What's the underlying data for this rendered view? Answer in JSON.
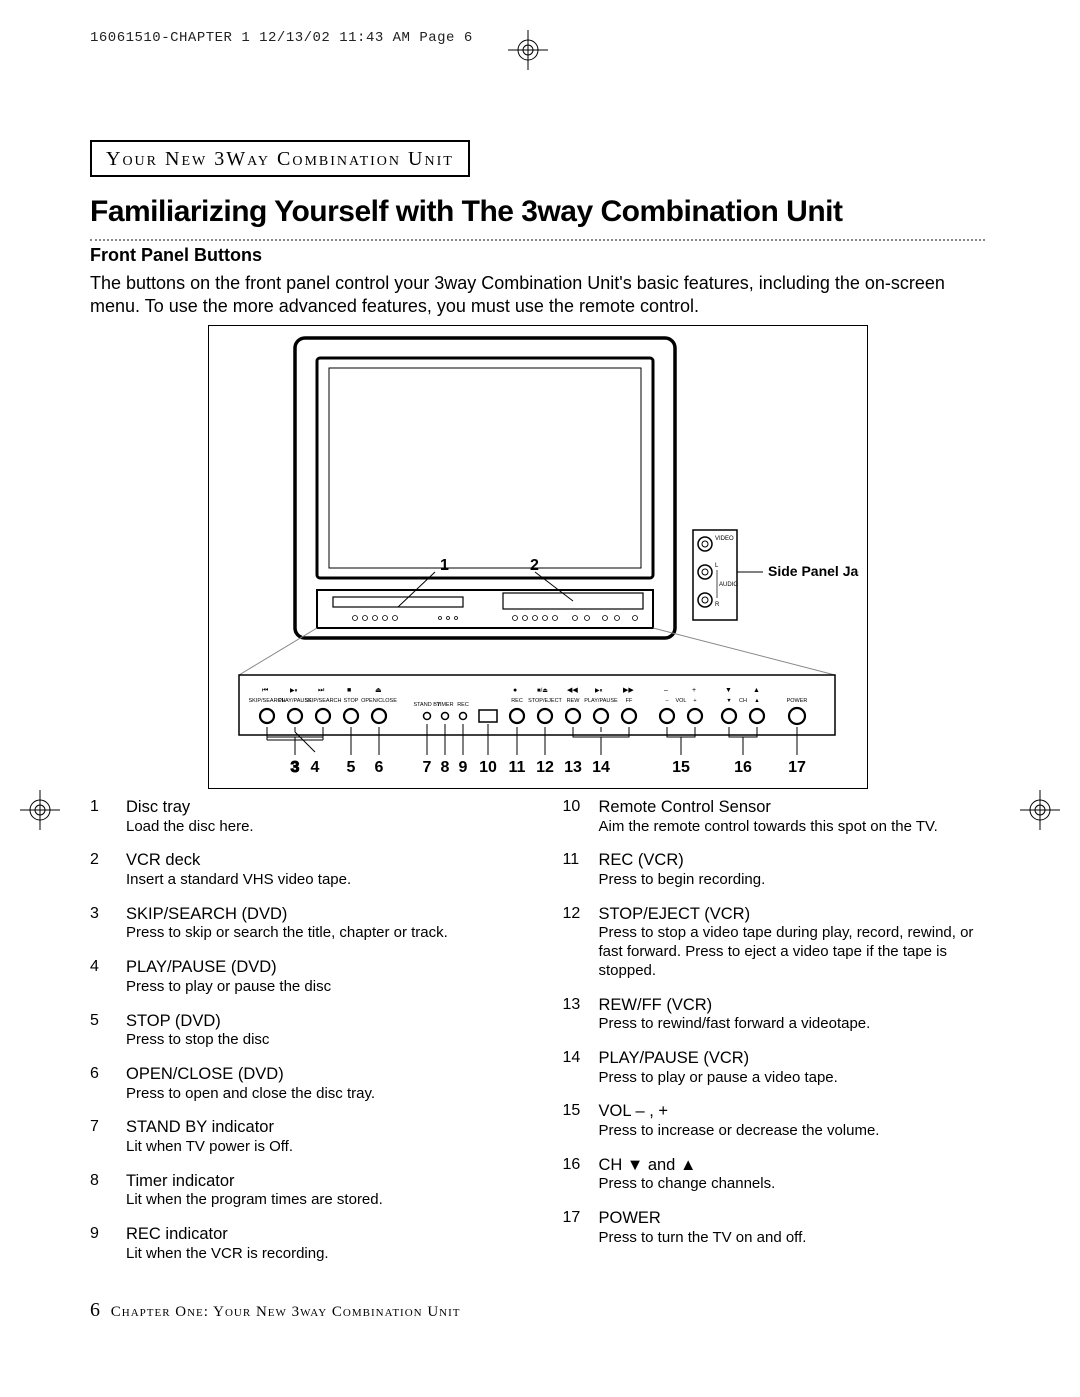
{
  "crop": {
    "header": "16061510-CHAPTER 1  12/13/02 11:43 AM  Page 6"
  },
  "section_box": "Your New 3Way Combination Unit",
  "title": "Familiarizing Yourself with The 3way Combination Unit",
  "subhead": "Front Panel Buttons",
  "intro": "The buttons on the front panel control your 3way Combination Unit's basic features, including the on-screen menu. To use the more advanced features, you must use the remote control.",
  "figure": {
    "side_panel_callout": "Side Panel Jacks",
    "side_jacks": {
      "video": "VIDEO",
      "l": "L",
      "audio": "AUDIO",
      "r": "R"
    },
    "top_labels": {
      "one": "1",
      "two": "2"
    },
    "panel_labels": [
      "SKIP/SEARCH",
      "PLAY/PAUSE",
      "SKIP/SEARCH",
      "STOP",
      "OPEN/CLOSE",
      "STAND BY",
      "TIMER",
      "REC",
      "REC",
      "STOP/EJECT",
      "REW",
      "PLAY/PAUSE",
      "FF",
      "–",
      "VOL",
      "+",
      "▼",
      "CH",
      "▲",
      "POWER"
    ],
    "panel_sym": [
      "⏮",
      "▶||",
      "⏭",
      "■",
      "⏏",
      "●",
      "■/⏏",
      "◀◀",
      "▶||",
      "▶▶"
    ],
    "bottom_nums": [
      "3",
      "4",
      "5",
      "6",
      "7",
      "8",
      "9",
      "10",
      "11",
      "12",
      "13",
      "14",
      "15",
      "16",
      "17"
    ]
  },
  "items_left": [
    {
      "num": "1",
      "label": "Disc tray",
      "desc": "Load the disc here."
    },
    {
      "num": "2",
      "label": "VCR deck",
      "desc": "Insert a standard VHS video tape."
    },
    {
      "num": "3",
      "label": "SKIP/SEARCH (DVD)",
      "desc": "Press to skip or search the title, chapter or track."
    },
    {
      "num": "4",
      "label": "PLAY/PAUSE (DVD)",
      "desc": "Press to play or pause the disc"
    },
    {
      "num": "5",
      "label": "STOP (DVD)",
      "desc": "Press to stop the disc"
    },
    {
      "num": "6",
      "label": "OPEN/CLOSE (DVD)",
      "desc": "Press to open and close the disc tray."
    },
    {
      "num": "7",
      "label": "STAND BY indicator",
      "desc": "Lit when TV power is Off."
    },
    {
      "num": "8",
      "label": "Timer indicator",
      "desc": "Lit when the program times are stored."
    },
    {
      "num": "9",
      "label": "REC indicator",
      "desc": "Lit when the VCR is recording."
    }
  ],
  "items_right": [
    {
      "num": "10",
      "label": "Remote Control Sensor",
      "desc": "Aim the remote control towards this spot on the TV."
    },
    {
      "num": "11",
      "label": "REC (VCR)",
      "desc": "Press to begin recording."
    },
    {
      "num": "12",
      "label": "STOP/EJECT (VCR)",
      "desc": "Press to stop a video tape during play, record, rewind, or fast forward. Press to eject a video tape if the tape is stopped."
    },
    {
      "num": "13",
      "label": "REW/FF (VCR)",
      "desc": "Press to rewind/fast forward a videotape."
    },
    {
      "num": "14",
      "label": "PLAY/PAUSE (VCR)",
      "desc": "Press to play or pause a video tape."
    },
    {
      "num": "15",
      "label": "VOL – , +",
      "desc": "Press to increase or decrease the volume."
    },
    {
      "num": "16",
      "label": "CH ▼ and ▲",
      "desc": "Press to change channels."
    },
    {
      "num": "17",
      "label": "POWER",
      "desc": "Press to turn the TV on and off."
    }
  ],
  "footer": {
    "page_num": "6",
    "chapter": "Chapter One: Your New 3way Combination Unit"
  }
}
